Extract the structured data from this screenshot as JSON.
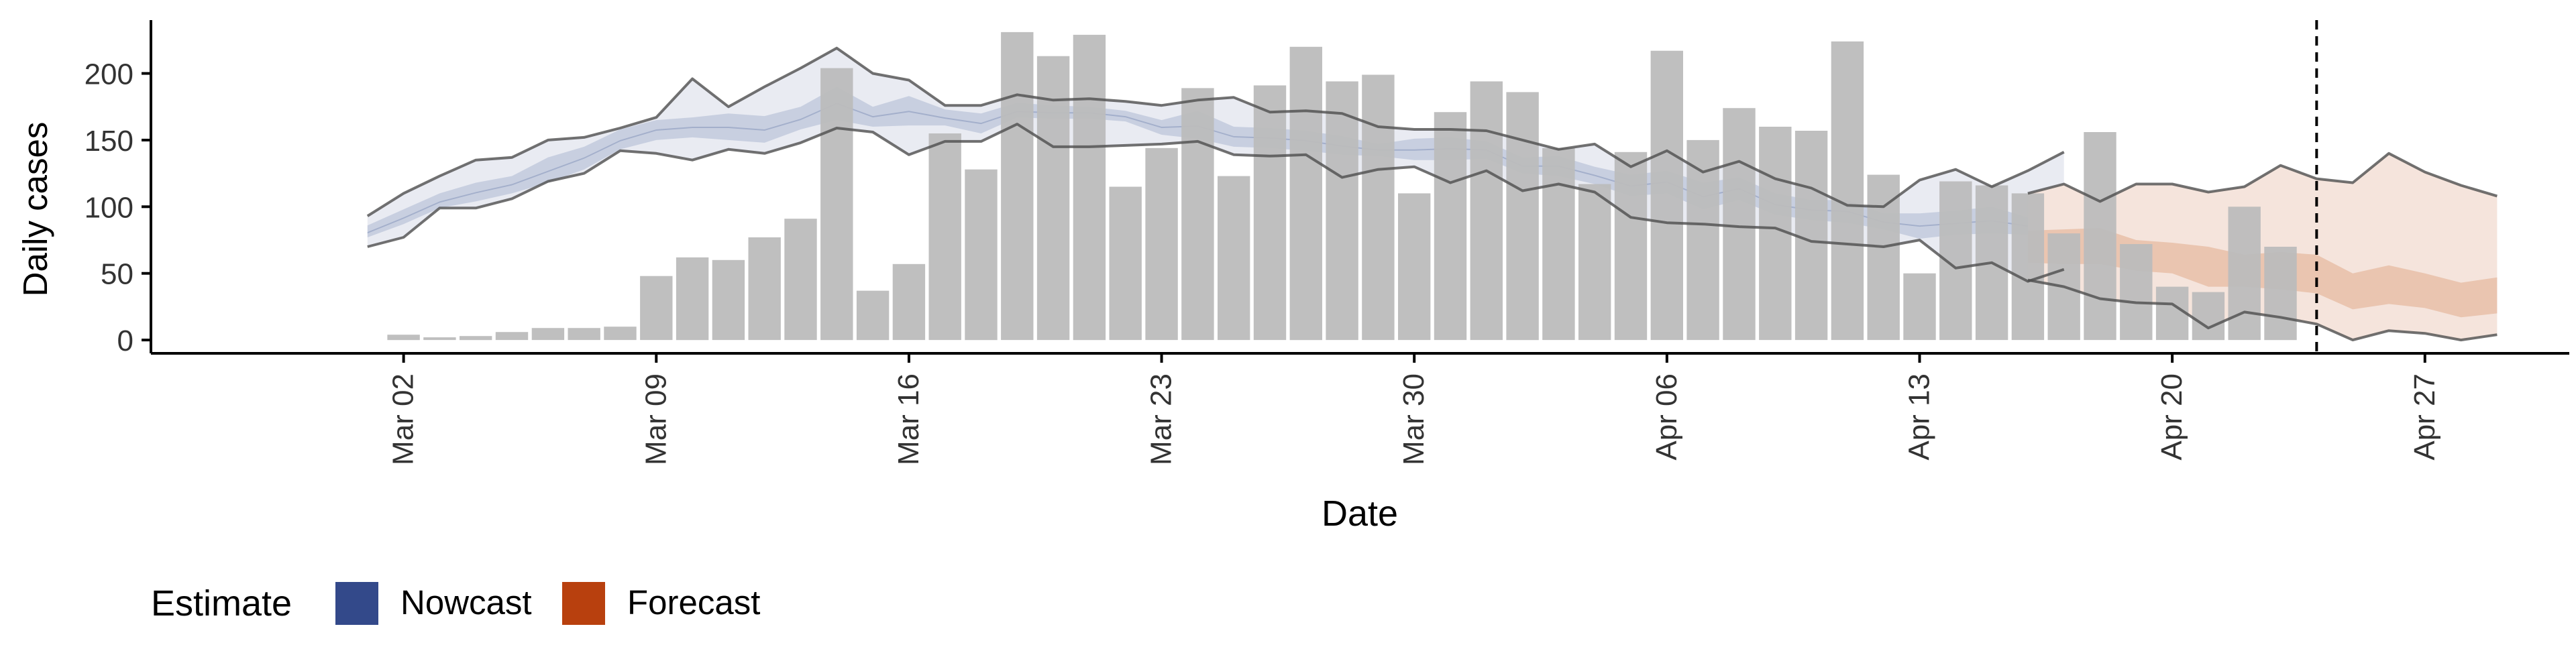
{
  "chart_data": {
    "type": "bar",
    "xlabel": "Date",
    "ylabel": "Daily cases",
    "ylim": [
      -10,
      240
    ],
    "y_ticks": [
      0,
      50,
      100,
      150,
      200
    ],
    "x_ticks": [
      "Mar 02",
      "Mar 09",
      "Mar 16",
      "Mar 23",
      "Mar 30",
      "Apr 06",
      "Apr 13",
      "Apr 20",
      "Apr 27"
    ],
    "x_range": [
      "2020-02-24",
      "2020-05-01"
    ],
    "dates": [
      "2020-03-01",
      "2020-03-02",
      "2020-03-03",
      "2020-03-04",
      "2020-03-05",
      "2020-03-06",
      "2020-03-07",
      "2020-03-08",
      "2020-03-09",
      "2020-03-10",
      "2020-03-11",
      "2020-03-12",
      "2020-03-13",
      "2020-03-14",
      "2020-03-15",
      "2020-03-16",
      "2020-03-17",
      "2020-03-18",
      "2020-03-19",
      "2020-03-20",
      "2020-03-21",
      "2020-03-22",
      "2020-03-23",
      "2020-03-24",
      "2020-03-25",
      "2020-03-26",
      "2020-03-27",
      "2020-03-28",
      "2020-03-29",
      "2020-03-30",
      "2020-03-31",
      "2020-04-01",
      "2020-04-02",
      "2020-04-03",
      "2020-04-04",
      "2020-04-05",
      "2020-04-06",
      "2020-04-07",
      "2020-04-08",
      "2020-04-09",
      "2020-04-10",
      "2020-04-11",
      "2020-04-12",
      "2020-04-13",
      "2020-04-14",
      "2020-04-15",
      "2020-04-16",
      "2020-04-17",
      "2020-04-18",
      "2020-04-19",
      "2020-04-20",
      "2020-04-21",
      "2020-04-22",
      "2020-04-23",
      "2020-04-24",
      "2020-04-25",
      "2020-04-26",
      "2020-04-27",
      "2020-04-28",
      "2020-04-29"
    ],
    "bars": {
      "start_date": "2020-03-02",
      "values": [
        4,
        2,
        3,
        6,
        9,
        9,
        10,
        48,
        62,
        60,
        77,
        91,
        204,
        37,
        57,
        155,
        128,
        231,
        213,
        229,
        115,
        144,
        189,
        123,
        191,
        220,
        194,
        199,
        110,
        171,
        194,
        186,
        144,
        117,
        141,
        217,
        150,
        174,
        160,
        157,
        224,
        124,
        50,
        119,
        116,
        110,
        80,
        156,
        72,
        40,
        36,
        100,
        70
      ]
    },
    "nowcast": {
      "start_date": "2020-03-01",
      "outer_upper": [
        93,
        110,
        123,
        135,
        137,
        150,
        152,
        159,
        167,
        196,
        175,
        190,
        204,
        219,
        200,
        195,
        176,
        176,
        184,
        180,
        181,
        179,
        176,
        180,
        182,
        171,
        172,
        170,
        160,
        158,
        158,
        157,
        150,
        143,
        147,
        130,
        142,
        126,
        134,
        121,
        114,
        101,
        100,
        120,
        128,
        115,
        127,
        141
      ],
      "outer_lower": [
        70,
        77,
        99,
        99,
        106,
        119,
        125,
        142,
        140,
        135,
        143,
        140,
        148,
        159,
        156,
        139,
        149,
        149,
        162,
        145,
        145,
        146,
        147,
        149,
        139,
        138,
        139,
        122,
        128,
        130,
        118,
        127,
        112,
        117,
        111,
        92,
        88,
        87,
        85,
        84,
        74,
        72,
        70,
        75,
        54,
        58,
        44,
        53
      ],
      "mid_upper": [
        86,
        98,
        110,
        118,
        123,
        137,
        145,
        158,
        165,
        167,
        170,
        168,
        175,
        190,
        175,
        183,
        173,
        170,
        178,
        176,
        175,
        172,
        165,
        172,
        160,
        159,
        157,
        153,
        147,
        151,
        152,
        149,
        137,
        138,
        130,
        124,
        127,
        118,
        122,
        110,
        105,
        105,
        95,
        95,
        97,
        100,
        92,
        95
      ],
      "mid_lower": [
        77,
        87,
        99,
        104,
        110,
        118,
        128,
        143,
        150,
        152,
        150,
        148,
        158,
        165,
        160,
        161,
        161,
        155,
        167,
        166,
        166,
        164,
        154,
        151,
        145,
        144,
        142,
        139,
        138,
        135,
        135,
        136,
        125,
        123,
        117,
        108,
        110,
        98,
        105,
        94,
        90,
        88,
        83,
        76,
        79,
        80,
        79,
        77
      ],
      "inner_upper": [
        81,
        92,
        104,
        111,
        117,
        127,
        137,
        150,
        158,
        160,
        160,
        158,
        166,
        178,
        168,
        172,
        167,
        163,
        172,
        171,
        171,
        168,
        160,
        161,
        153,
        152,
        150,
        146,
        143,
        143,
        144,
        143,
        131,
        131,
        124,
        116,
        119,
        108,
        114,
        102,
        98,
        97,
        89,
        86,
        88,
        90,
        86,
        86
      ],
      "inner_lower": [
        80,
        91,
        103,
        110,
        116,
        126,
        136,
        149,
        157,
        159,
        159,
        157,
        165,
        177,
        167,
        171,
        166,
        162,
        171,
        170,
        170,
        167,
        159,
        160,
        152,
        151,
        149,
        145,
        142,
        142,
        143,
        142,
        130,
        130,
        123,
        115,
        118,
        107,
        113,
        101,
        97,
        96,
        88,
        85,
        87,
        89,
        85,
        85
      ]
    },
    "forecast": {
      "start_date": "2020-04-16",
      "outer_upper": [
        110,
        117,
        104,
        117,
        117,
        111,
        115,
        131,
        121,
        118,
        140,
        126,
        116,
        108
      ],
      "outer_lower": [
        45,
        40,
        31,
        28,
        27,
        9,
        21,
        17,
        12,
        0,
        7,
        5,
        0,
        4
      ],
      "mid_upper": [
        82,
        83,
        84,
        75,
        73,
        70,
        64,
        66,
        64,
        50,
        56,
        50,
        43,
        47
      ],
      "mid_lower": [
        58,
        57,
        57,
        52,
        50,
        40,
        40,
        38,
        35,
        23,
        27,
        24,
        17,
        20
      ]
    },
    "forecast_start_line": "2020-04-24",
    "legend": {
      "title": "Estimate",
      "position": "bottom",
      "items": [
        {
          "label": "Nowcast",
          "color": "#33498a"
        },
        {
          "label": "Forecast",
          "color": "#b8400e"
        }
      ]
    },
    "colors": {
      "bar": "#bcbcbc",
      "nowcast_outer": "#e9ebf2",
      "nowcast_mid": "#c2cadd",
      "nowcast_inner": "#9aa6c5",
      "forecast_outer": "#f5e4dc",
      "forecast_mid": "#e8bfa8",
      "bound_line": "#4d4d4d",
      "axis": "#000000"
    }
  }
}
